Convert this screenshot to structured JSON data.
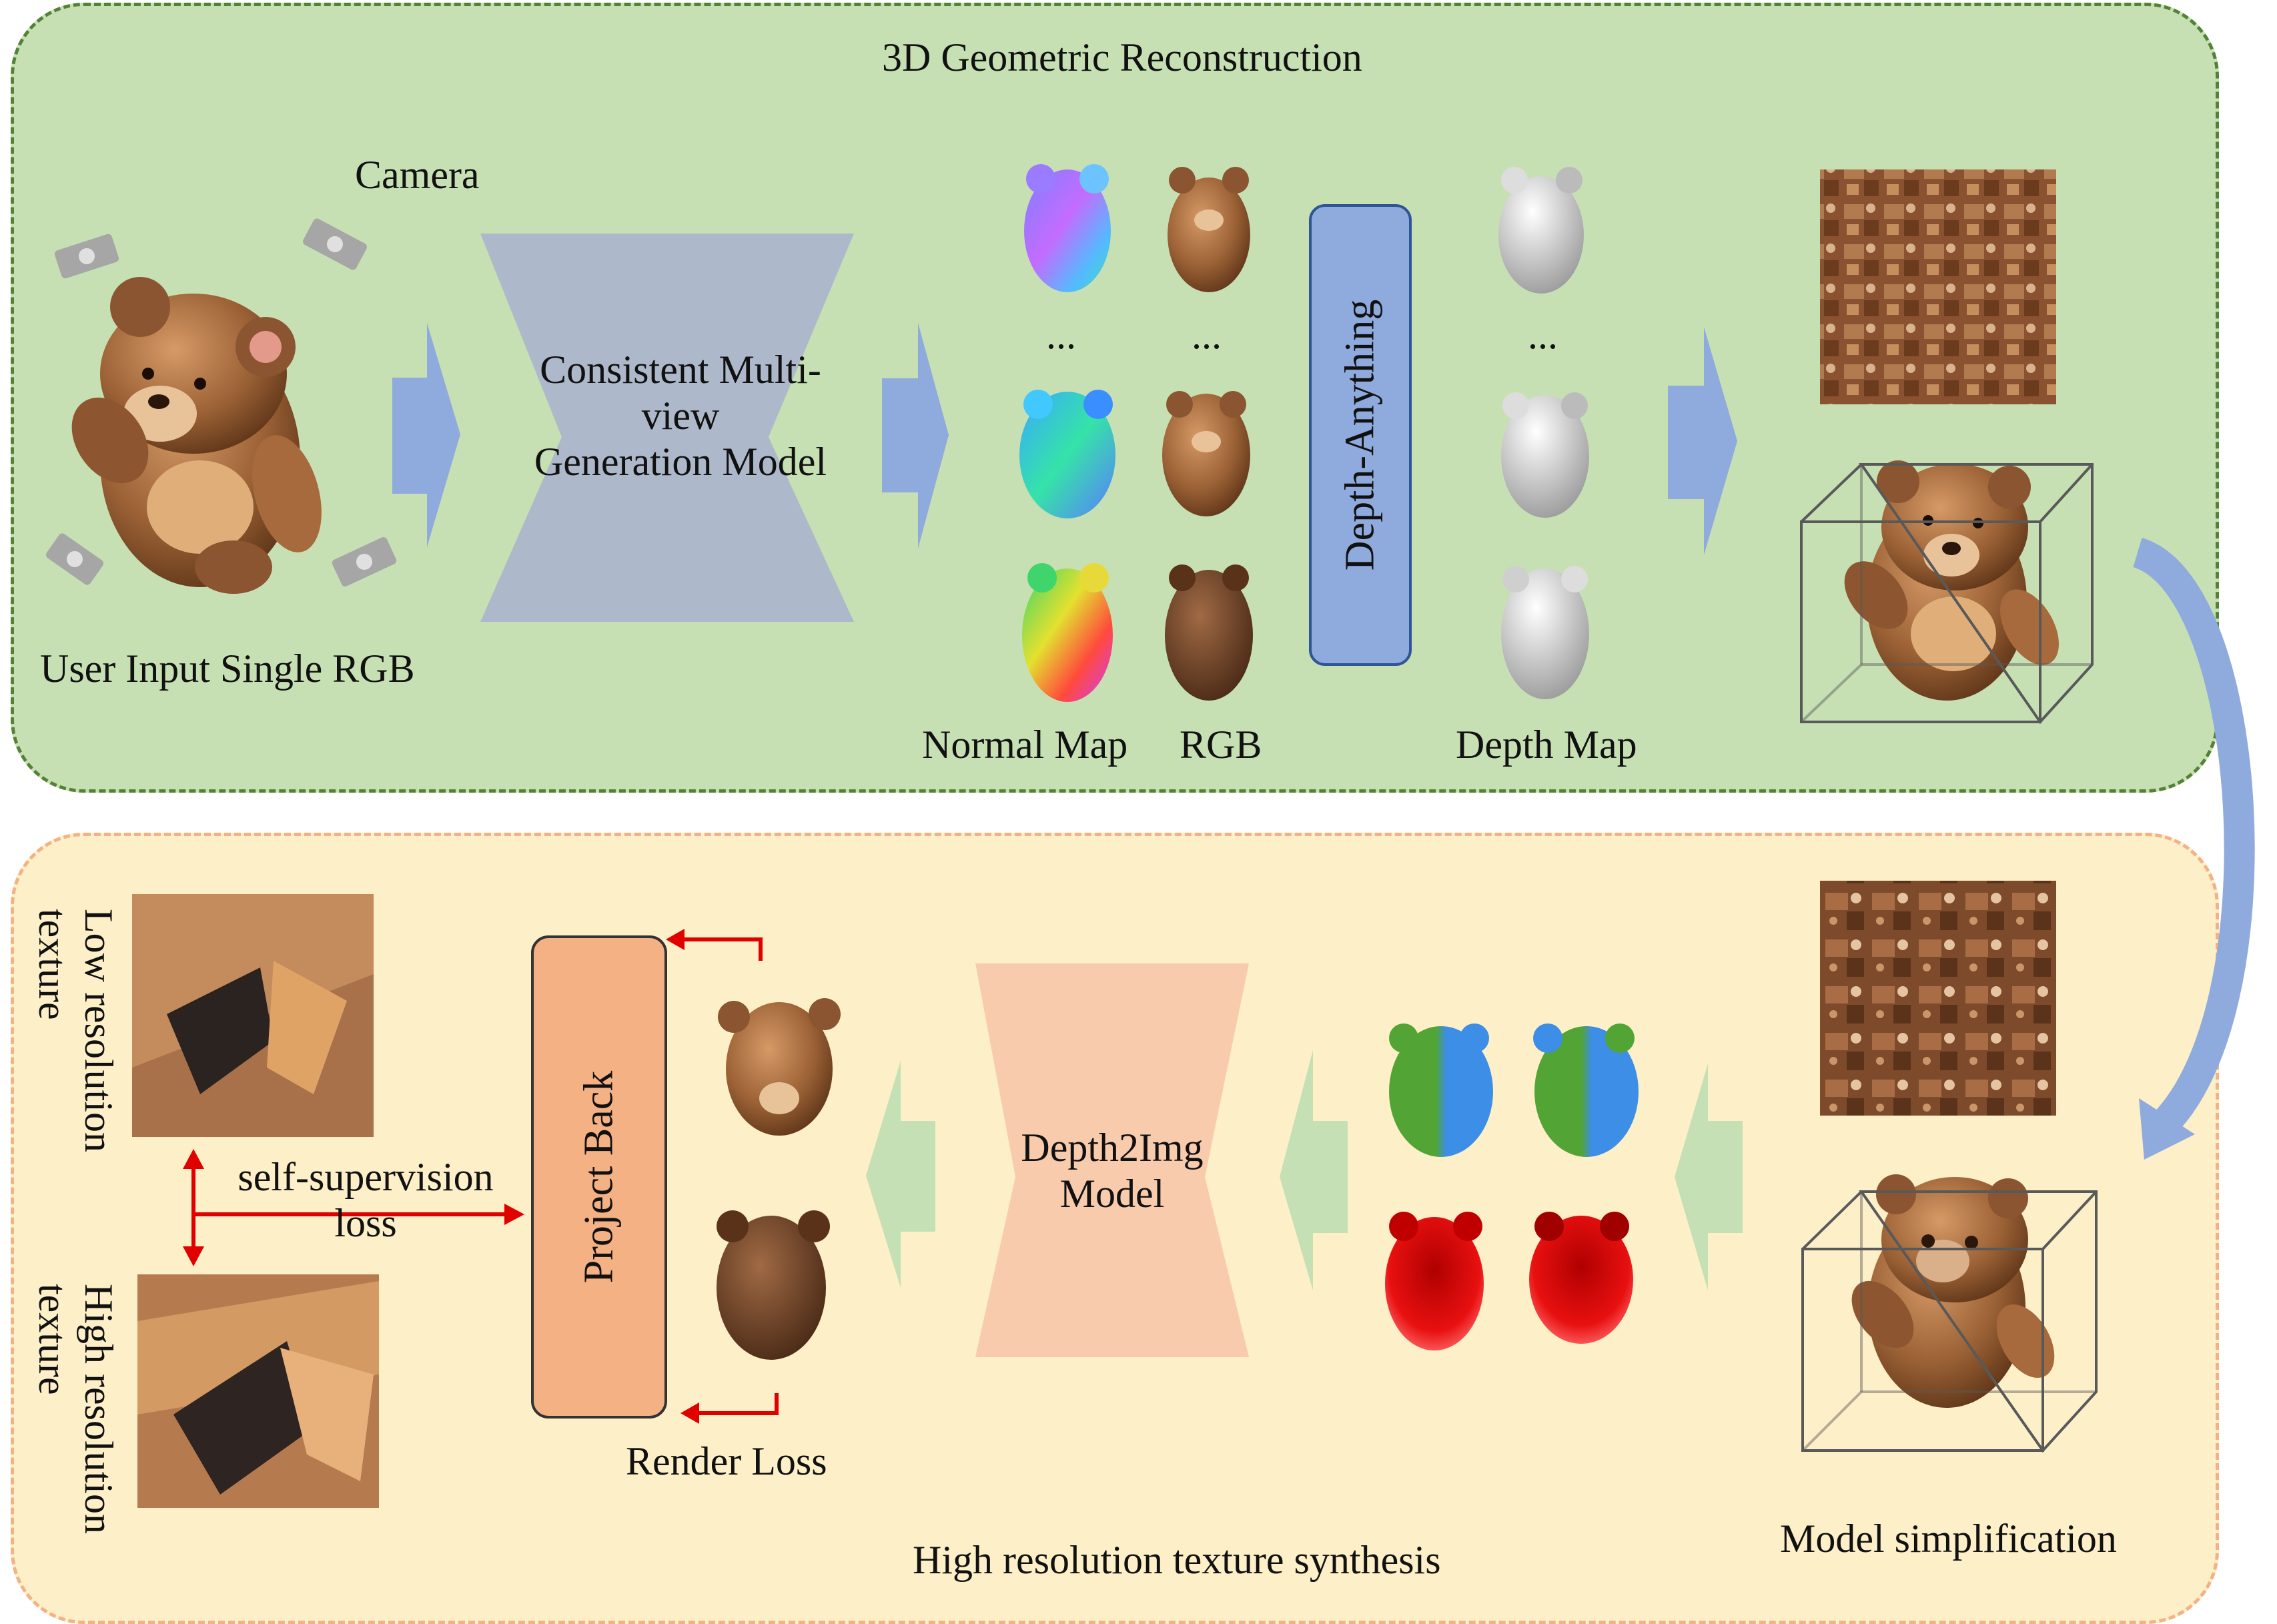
{
  "top_panel": {
    "title": "3D Geometric Reconstruction",
    "camera_label": "Camera",
    "input_label": "User Input Single RGB",
    "generator_label": "Consistent Multi-view Generation Model",
    "generator_lines": [
      "Consistent Multi-",
      "view",
      "Generation Model"
    ],
    "ellipsis": "...",
    "normal_map_label": "Normal Map",
    "rgb_label": "RGB",
    "depth_anything_label": "Depth-Anything",
    "depth_map_label": "Depth Map"
  },
  "bottom_panel": {
    "title": "High resolution texture synthesis",
    "simplification_label": "Model simplification",
    "depth2img_lines": [
      "Depth2Img",
      "Model"
    ],
    "project_back_label": "Project Back",
    "render_loss_label": "Render Loss",
    "self_supervision_lines": [
      "self-supervision",
      "loss"
    ],
    "low_res_lines": [
      "Low resolution",
      "texture"
    ],
    "high_res_lines": [
      "High resolution",
      "texture"
    ]
  },
  "colors": {
    "top_fill": "#c6e0b4",
    "top_border": "#548235",
    "bottom_fill": "#fdefc8",
    "bottom_border": "#f4b183",
    "flow_arrow_top": "#8faadc",
    "flow_arrow_bottom": "#c5e0b4",
    "generator_fill": "#adb9ca",
    "depth2img_fill": "#f8cbad",
    "loss_arrow": "#e00000"
  }
}
